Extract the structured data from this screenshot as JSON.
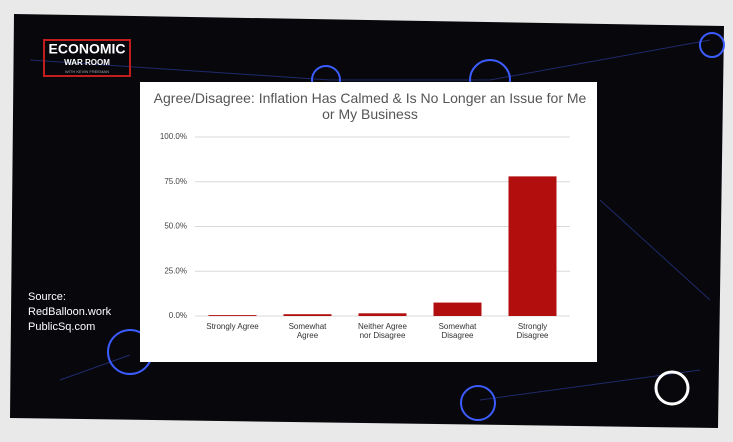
{
  "logo": {
    "line1": "ECONOMIC",
    "line2": "WAR ROOM",
    "line3": "WITH KEVIN FREEMAN"
  },
  "source": [
    "Source:",
    "RedBalloon.work",
    "PublicSq.com"
  ],
  "chart_data": {
    "type": "bar",
    "title": "Agree/Disagree: Inflation Has Calmed & Is No Longer an Issue for Me or My Business",
    "categories": [
      "Strongly Agree",
      "Somewhat Agree",
      "Neither Agree nor Disagree",
      "Somewhat Disagree",
      "Strongly Disagree"
    ],
    "values": [
      0.5,
      1,
      1.5,
      7.5,
      78
    ],
    "color": "#b30e0e",
    "ylim": [
      0,
      100
    ],
    "yticks": [
      {
        "value": 0,
        "label": "0.0%"
      },
      {
        "value": 25,
        "label": "25.0%"
      },
      {
        "value": 50,
        "label": "50.0%"
      },
      {
        "value": 75,
        "label": "75.0%"
      },
      {
        "value": 100,
        "label": "100.0%"
      }
    ],
    "grid": true
  }
}
